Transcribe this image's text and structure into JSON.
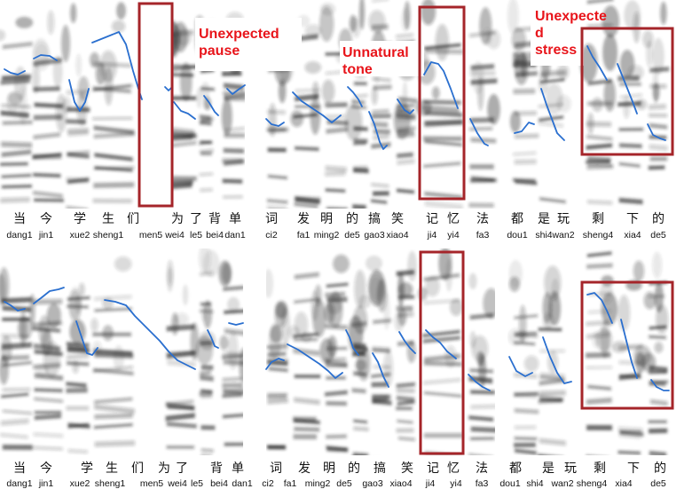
{
  "annotations": {
    "pause": "Unexpected\npause",
    "tone": "Unnatural\ntone",
    "stress": "Unexpecte\nd\nstress"
  },
  "colors": {
    "highlight_box": "#a5252a",
    "annotation_text": "#e8151b",
    "pitch_contour": "#2a6fcf",
    "spectrogram_ink": "#222222"
  },
  "syllables_top": [
    {
      "hanzi": "当",
      "pinyin": "dang1"
    },
    {
      "hanzi": "今",
      "pinyin": "jin1"
    },
    {
      "hanzi": "学",
      "pinyin": "xue2"
    },
    {
      "hanzi": "生",
      "pinyin": "sheng1"
    },
    {
      "hanzi": "们",
      "pinyin": "men5"
    },
    {
      "hanzi": "为",
      "pinyin": "wei4"
    },
    {
      "hanzi": "了",
      "pinyin": "le5"
    },
    {
      "hanzi": "背",
      "pinyin": "bei4"
    },
    {
      "hanzi": "单",
      "pinyin": "dan1"
    },
    {
      "hanzi": "词",
      "pinyin": "ci2"
    },
    {
      "hanzi": "发",
      "pinyin": "fa1"
    },
    {
      "hanzi": "明",
      "pinyin": "ming2"
    },
    {
      "hanzi": "的",
      "pinyin": "de5"
    },
    {
      "hanzi": "搞",
      "pinyin": "gao3"
    },
    {
      "hanzi": "笑",
      "pinyin": "xiao4"
    },
    {
      "hanzi": "记",
      "pinyin": "ji4"
    },
    {
      "hanzi": "忆",
      "pinyin": "yi4"
    },
    {
      "hanzi": "法",
      "pinyin": "fa3"
    },
    {
      "hanzi": "都",
      "pinyin": "dou1"
    },
    {
      "hanzi": "是",
      "pinyin": "shi4"
    },
    {
      "hanzi": "玩",
      "pinyin": "wan2"
    },
    {
      "hanzi": "剩",
      "pinyin": "sheng4"
    },
    {
      "hanzi": "下",
      "pinyin": "xia4"
    },
    {
      "hanzi": "的",
      "pinyin": "de5"
    }
  ],
  "syllables_bottom": [
    {
      "hanzi": "当",
      "pinyin": "dang1"
    },
    {
      "hanzi": "今",
      "pinyin": "jin1"
    },
    {
      "hanzi": "学",
      "pinyin": "xue2"
    },
    {
      "hanzi": "生",
      "pinyin": "sheng1"
    },
    {
      "hanzi": "们",
      "pinyin": "men5"
    },
    {
      "hanzi": "为",
      "pinyin": "wei4"
    },
    {
      "hanzi": "了",
      "pinyin": "le5"
    },
    {
      "hanzi": "背",
      "pinyin": "bei4"
    },
    {
      "hanzi": "单",
      "pinyin": "dan1"
    },
    {
      "hanzi": "词",
      "pinyin": "ci2"
    },
    {
      "hanzi": "发",
      "pinyin": "fa1"
    },
    {
      "hanzi": "明",
      "pinyin": "ming2"
    },
    {
      "hanzi": "的",
      "pinyin": "de5"
    },
    {
      "hanzi": "搞",
      "pinyin": "gao3"
    },
    {
      "hanzi": "笑",
      "pinyin": "xiao4"
    },
    {
      "hanzi": "记",
      "pinyin": "ji4"
    },
    {
      "hanzi": "忆",
      "pinyin": "yi4"
    },
    {
      "hanzi": "法",
      "pinyin": "fa3"
    },
    {
      "hanzi": "都",
      "pinyin": "dou1"
    },
    {
      "hanzi": "是",
      "pinyin": "shi4"
    },
    {
      "hanzi": "玩",
      "pinyin": "wan2"
    },
    {
      "hanzi": "剩",
      "pinyin": "sheng4"
    },
    {
      "hanzi": "下",
      "pinyin": "xia4"
    },
    {
      "hanzi": "的",
      "pinyin": "de5"
    }
  ]
}
